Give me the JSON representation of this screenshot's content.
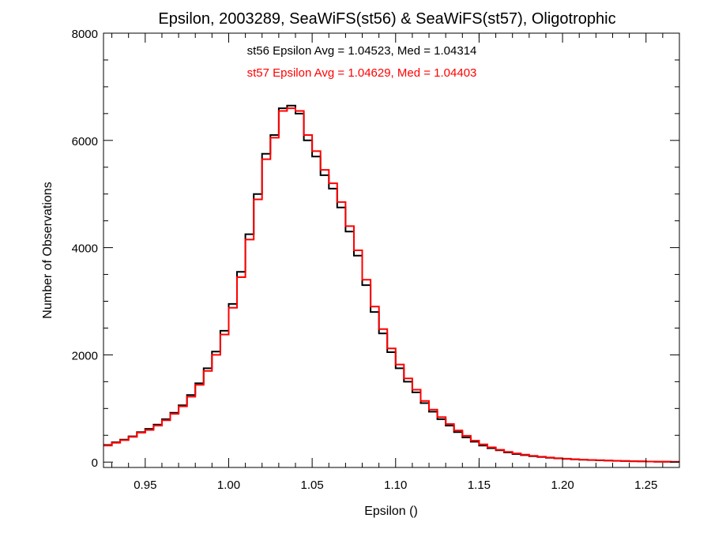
{
  "chart_data": {
    "type": "line",
    "title": "Epsilon, 2003289, SeaWiFS(st56) & SeaWiFS(st57), Oligotrophic",
    "xlabel": "Epsilon ()",
    "ylabel": "Number of Observations",
    "xlim": [
      0.925,
      1.27
    ],
    "ylim": [
      -100,
      8000
    ],
    "x_ticks": [
      0.95,
      1.0,
      1.05,
      1.1,
      1.15,
      1.2,
      1.25
    ],
    "x_tick_labels": [
      "0.95",
      "1.00",
      "1.05",
      "1.10",
      "1.15",
      "1.20",
      "1.25"
    ],
    "y_ticks": [
      0,
      2000,
      4000,
      6000,
      8000
    ],
    "y_tick_labels": [
      "0",
      "2000",
      "4000",
      "6000",
      "8000"
    ],
    "grid": false,
    "step": "histogram",
    "annotations": [
      {
        "text": "st56 Epsilon Avg = 1.04523, Med = 1.04314",
        "color": "#000000"
      },
      {
        "text": "st57 Epsilon Avg = 1.04629, Med = 1.04403",
        "color": "#ff0000"
      }
    ],
    "series": [
      {
        "color": "#000000",
        "x": [
          0.925,
          0.93,
          0.935,
          0.94,
          0.945,
          0.95,
          0.955,
          0.96,
          0.965,
          0.97,
          0.975,
          0.98,
          0.985,
          0.99,
          0.995,
          1.0,
          1.005,
          1.01,
          1.015,
          1.02,
          1.025,
          1.03,
          1.035,
          1.04,
          1.045,
          1.05,
          1.055,
          1.06,
          1.065,
          1.07,
          1.075,
          1.08,
          1.085,
          1.09,
          1.095,
          1.1,
          1.105,
          1.11,
          1.115,
          1.12,
          1.125,
          1.13,
          1.135,
          1.14,
          1.145,
          1.15,
          1.155,
          1.16,
          1.165,
          1.17,
          1.175,
          1.18,
          1.185,
          1.19,
          1.195,
          1.2,
          1.205,
          1.21,
          1.215,
          1.22,
          1.225,
          1.23,
          1.235,
          1.24,
          1.245,
          1.25,
          1.255,
          1.26,
          1.265
        ],
        "values": [
          320,
          370,
          420,
          480,
          560,
          620,
          700,
          800,
          920,
          1060,
          1250,
          1470,
          1750,
          2060,
          2450,
          2950,
          3550,
          4250,
          5000,
          5750,
          6100,
          6600,
          6650,
          6500,
          6000,
          5700,
          5350,
          5100,
          4750,
          4300,
          3850,
          3300,
          2800,
          2400,
          2050,
          1750,
          1500,
          1300,
          1100,
          940,
          800,
          680,
          560,
          460,
          380,
          310,
          260,
          220,
          180,
          150,
          130,
          110,
          95,
          80,
          70,
          60,
          52,
          45,
          38,
          33,
          28,
          24,
          20,
          16,
          13,
          10,
          8,
          6,
          5
        ]
      },
      {
        "color": "#ff0000",
        "x": [
          0.925,
          0.93,
          0.935,
          0.94,
          0.945,
          0.95,
          0.955,
          0.96,
          0.965,
          0.97,
          0.975,
          0.98,
          0.985,
          0.99,
          0.995,
          1.0,
          1.005,
          1.01,
          1.015,
          1.02,
          1.025,
          1.03,
          1.035,
          1.04,
          1.045,
          1.05,
          1.055,
          1.06,
          1.065,
          1.07,
          1.075,
          1.08,
          1.085,
          1.09,
          1.095,
          1.1,
          1.105,
          1.11,
          1.115,
          1.12,
          1.125,
          1.13,
          1.135,
          1.14,
          1.145,
          1.15,
          1.155,
          1.16,
          1.165,
          1.17,
          1.175,
          1.18,
          1.185,
          1.19,
          1.195,
          1.2,
          1.205,
          1.21,
          1.215,
          1.22,
          1.225,
          1.23,
          1.235,
          1.24,
          1.245,
          1.25,
          1.255,
          1.26,
          1.265
        ],
        "values": [
          310,
          360,
          410,
          470,
          550,
          600,
          680,
          780,
          900,
          1040,
          1220,
          1440,
          1700,
          2000,
          2380,
          2880,
          3450,
          4150,
          4900,
          5650,
          6050,
          6550,
          6600,
          6550,
          6100,
          5800,
          5450,
          5200,
          4850,
          4400,
          3950,
          3400,
          2900,
          2480,
          2120,
          1820,
          1560,
          1350,
          1140,
          980,
          840,
          710,
          590,
          490,
          400,
          330,
          275,
          230,
          190,
          160,
          138,
          118,
          100,
          86,
          74,
          64,
          55,
          47,
          40,
          35,
          30,
          25,
          21,
          17,
          14,
          11,
          9,
          7,
          5
        ]
      }
    ]
  }
}
